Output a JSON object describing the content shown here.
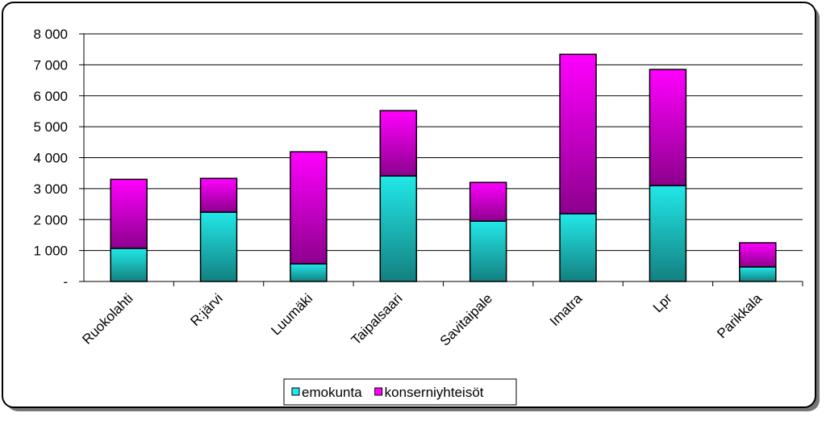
{
  "chart_data": {
    "type": "stacked-bar",
    "categories": [
      "Ruokolahti",
      "R:järvi",
      "Luumäki",
      "Taipalsaari",
      "Savitaipale",
      "Imatra",
      "Lpr",
      "Parikkala"
    ],
    "series": [
      {
        "name": "emokunta",
        "color": "#22e8e8",
        "values": [
          1070,
          2240,
          570,
          3410,
          1950,
          2190,
          3100,
          470
        ]
      },
      {
        "name": "konserniyhteisöt",
        "color": "#ff00ff",
        "values": [
          2230,
          1090,
          3620,
          2110,
          1250,
          5150,
          3750,
          780
        ]
      }
    ],
    "ylim": [
      0,
      8000
    ],
    "yticks": [
      {
        "value": 0,
        "label": "-"
      },
      {
        "value": 1000,
        "label": "1 000"
      },
      {
        "value": 2000,
        "label": "2 000"
      },
      {
        "value": 3000,
        "label": "3 000"
      },
      {
        "value": 4000,
        "label": "4 000"
      },
      {
        "value": 5000,
        "label": "5 000"
      },
      {
        "value": 6000,
        "label": "6 000"
      },
      {
        "value": 7000,
        "label": "7 000"
      },
      {
        "value": 8000,
        "label": "8 000"
      }
    ],
    "grid": true
  }
}
